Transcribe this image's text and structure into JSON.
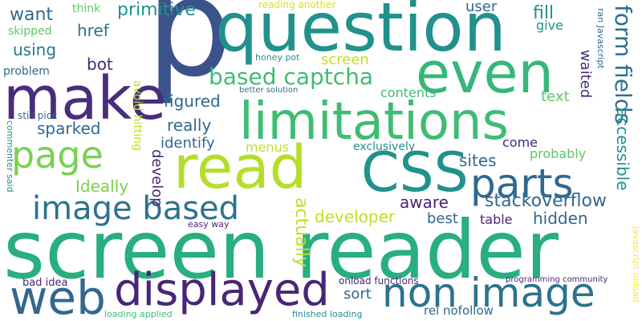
{
  "palette": {
    "dark_purple": "#440154",
    "indigo": "#3b528b",
    "blue": "#31688e",
    "teal": "#21918c",
    "green": "#35b779",
    "light_green": "#5ec962",
    "yellow_green": "#b5de2b",
    "yellow": "#fde725"
  },
  "words": {
    "p": "p",
    "question": "question",
    "even": "even",
    "make": "make",
    "limitations": "limitations",
    "read": "read",
    "css": "CSS",
    "page": "page",
    "parts": "parts",
    "screen_reader": "screen reader",
    "web": "web",
    "displayed": "displayed",
    "non_image": "non image",
    "image_based": "image based",
    "based_captcha": "based captcha",
    "form_fields": "form fields",
    "want": "want",
    "primitive": "primitive",
    "user": "user",
    "fill": "fill",
    "think": "think",
    "reading_another": "reading another",
    "skipped": "skipped",
    "href": "href",
    "give": "give",
    "using": "using",
    "screen": "screen",
    "bot": "bot",
    "waited": "waited",
    "ran_javascript": "ran Javascript",
    "honey_pot": "honey pot",
    "problem": "problem",
    "better_solution": "better solution",
    "contents": "contents",
    "text": "text",
    "avoid_hitting": "avoid hitting",
    "still_pick": "still pick",
    "figured": "figured",
    "commenter_said": "commenter said",
    "sparked": "sparked",
    "really": "really",
    "accessible": "accessible",
    "identify": "identify",
    "menus": "menus",
    "exclusively": "exclusively",
    "come": "come",
    "develop": "develop",
    "probably": "probably",
    "sites": "sites",
    "ideally": "Ideally",
    "aware": "aware",
    "stackoverflow": "stackoverflow",
    "hidden": "hidden",
    "developer": "developer",
    "actually": "actually",
    "best": "best",
    "table": "table",
    "easy_way": "easy way",
    "javascript_onload": "Javascript onload",
    "bad_idea": "bad idea",
    "onload_functions": "onload functions",
    "programming_community": "programming community",
    "sort": "sort",
    "loading_applied": "loading applied",
    "finished_loading": "finished loading",
    "rel_nofollow": "rel nofollow"
  }
}
